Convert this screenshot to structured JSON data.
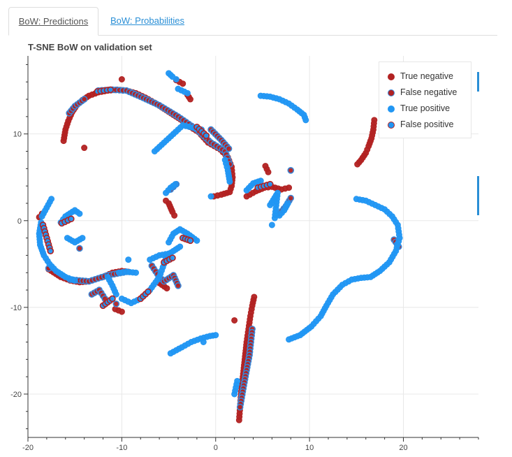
{
  "tabs": [
    {
      "label": "BoW: Predictions",
      "active": true
    },
    {
      "label": "BoW: Probabilities",
      "active": false
    }
  ],
  "chart_data": {
    "type": "scatter",
    "title": "T-SNE BoW on validation set",
    "xlabel": "",
    "ylabel": "",
    "xlim": [
      -20,
      28
    ],
    "ylim": [
      -25,
      19
    ],
    "xticks": [
      -20,
      -10,
      0,
      10,
      20
    ],
    "yticks": [
      -20,
      -10,
      0,
      10
    ],
    "grid": true,
    "legend_position": "top-right",
    "series": [
      {
        "name": "True negative",
        "color": "#b22222",
        "edge": "#b22222",
        "segments": [
          [
            [
              -16.2,
              9.2
            ],
            [
              -16.0,
              10.5
            ],
            [
              -15.7,
              11.5
            ],
            [
              -15.3,
              12.5
            ],
            [
              -14.8,
              13.3
            ],
            [
              -14.2,
              13.9
            ],
            [
              -13.5,
              14.4
            ],
            [
              -12.5,
              14.8
            ],
            [
              -11.5,
              15.0
            ],
            [
              -10.5,
              15.1
            ],
            [
              -9.5,
              15.0
            ],
            [
              -8.5,
              14.7
            ],
            [
              -7.5,
              14.2
            ],
            [
              -6.5,
              13.6
            ],
            [
              -5.5,
              12.9
            ],
            [
              -4.5,
              12.2
            ],
            [
              -3.5,
              11.5
            ]
          ],
          [
            [
              -3.0,
              11.0
            ],
            [
              -1.8,
              10.2
            ],
            [
              -0.8,
              9.0
            ],
            [
              0.5,
              8.2
            ],
            [
              1.3,
              7.3
            ],
            [
              1.7,
              6.2
            ],
            [
              1.8,
              5.0
            ],
            [
              1.7,
              4.0
            ],
            [
              1.5,
              3.3
            ],
            [
              0.6,
              3.0
            ],
            [
              -0.2,
              2.8
            ]
          ],
          [
            [
              15.1,
              6.5
            ],
            [
              15.5,
              7.0
            ],
            [
              16.0,
              7.8
            ],
            [
              16.3,
              8.6
            ],
            [
              16.6,
              9.5
            ],
            [
              16.8,
              10.5
            ],
            [
              16.9,
              11.6
            ]
          ],
          [
            [
              2.5,
              -23.0
            ],
            [
              2.6,
              -21.5
            ],
            [
              2.7,
              -20.0
            ],
            [
              2.9,
              -18.0
            ],
            [
              3.1,
              -16.0
            ],
            [
              3.3,
              -14.0
            ],
            [
              3.5,
              -12.5
            ],
            [
              3.7,
              -11.0
            ],
            [
              3.9,
              -9.8
            ],
            [
              4.1,
              -8.8
            ]
          ],
          [
            [
              -5.3,
              2.3
            ],
            [
              -5.0,
              2.0
            ],
            [
              -4.8,
              1.5
            ],
            [
              -4.6,
              1.0
            ],
            [
              -4.4,
              0.6
            ]
          ],
          [
            [
              -18.5,
              0.8
            ],
            [
              -18.8,
              0.4
            ]
          ],
          [
            [
              -17.8,
              -5.6
            ],
            [
              -16.5,
              -6.5
            ],
            [
              -15.5,
              -6.9
            ],
            [
              -14.5,
              -7.1
            ],
            [
              -13.5,
              -7.0
            ]
          ],
          [
            [
              -12.0,
              -6.5
            ],
            [
              -11.0,
              -6.0
            ],
            [
              -10.0,
              -5.8
            ],
            [
              -9.3,
              -5.9
            ]
          ],
          [
            [
              3.3,
              2.8
            ],
            [
              4.3,
              3.4
            ],
            [
              5.2,
              3.8
            ],
            [
              6.0,
              3.9
            ],
            [
              7.0,
              3.6
            ],
            [
              7.8,
              3.8
            ]
          ],
          [
            [
              5.3,
              6.3
            ],
            [
              5.6,
              5.6
            ]
          ],
          [
            [
              -6.0,
              -7.2
            ],
            [
              -5.2,
              -7.8
            ]
          ],
          [
            [
              -10.7,
              -10.2
            ],
            [
              -10.0,
              -10.5
            ]
          ],
          [
            [
              -14.0,
              8.4
            ]
          ],
          [
            [
              -10.0,
              16.3
            ]
          ],
          [
            [
              -4.2,
              16.2
            ],
            [
              -3.5,
              15.8
            ]
          ],
          [
            [
              -3.0,
              14.5
            ],
            [
              -2.7,
              14.0
            ]
          ],
          [
            [
              2.0,
              -11.5
            ]
          ]
        ]
      },
      {
        "name": "False negative",
        "color": "#b22222",
        "edge": "#3a86d6",
        "segments": [
          [
            [
              -12.5,
              15.0
            ],
            [
              -11.0,
              15.1
            ],
            [
              -9.5,
              15.0
            ],
            [
              -8.0,
              14.3
            ],
            [
              -6.0,
              13.3
            ],
            [
              -4.0,
              12.0
            ],
            [
              -2.0,
              10.5
            ],
            [
              -0.5,
              9.0
            ],
            [
              1.0,
              8.0
            ],
            [
              1.5,
              6.5
            ]
          ],
          [
            [
              -15.6,
              12.4
            ],
            [
              -15.0,
              13.2
            ],
            [
              -14.0,
              14.0
            ]
          ],
          [
            [
              -15.5,
              -6.8
            ],
            [
              -13.5,
              -7.0
            ],
            [
              -11.5,
              -6.3
            ],
            [
              -9.5,
              -5.9
            ]
          ],
          [
            [
              -13.2,
              -8.5
            ],
            [
              -12.4,
              -8.0
            ],
            [
              -11.8,
              -9.0
            ]
          ],
          [
            [
              -6.8,
              -5.2
            ],
            [
              -6.0,
              -6.5
            ],
            [
              -5.5,
              -7.0
            ],
            [
              -4.5,
              -6.3
            ],
            [
              -4.0,
              -7.5
            ]
          ],
          [
            [
              -4.8,
              3.6
            ],
            [
              -4.2,
              4.2
            ]
          ],
          [
            [
              6.8,
              0.8
            ],
            [
              7.5,
              1.7
            ],
            [
              8.0,
              2.6
            ]
          ],
          [
            [
              3.9,
              -12.5
            ],
            [
              3.6,
              -15.5
            ],
            [
              3.0,
              -19.0
            ],
            [
              2.6,
              -21.5
            ]
          ],
          [
            [
              19.0,
              -2.2
            ],
            [
              19.5,
              -3.0
            ]
          ],
          [
            [
              -0.5,
              10.5
            ],
            [
              0.6,
              9.3
            ],
            [
              1.4,
              8.3
            ]
          ],
          [
            [
              8.0,
              5.8
            ]
          ],
          [
            [
              -17.8,
              -5.5
            ]
          ],
          [
            [
              -14.5,
              -3.2
            ]
          ],
          [
            [
              -10.6,
              -9.6
            ]
          ]
        ]
      },
      {
        "name": "True positive",
        "color": "#2196f3",
        "edge": "#2196f3",
        "segments": [
          [
            [
              -18.6,
              -0.2
            ],
            [
              -18.8,
              -1.5
            ],
            [
              -18.7,
              -2.8
            ],
            [
              -18.3,
              -4.0
            ],
            [
              -17.7,
              -5.0
            ],
            [
              -17.0,
              -5.8
            ],
            [
              -16.0,
              -6.5
            ],
            [
              -15.0,
              -6.9
            ]
          ],
          [
            [
              -18.5,
              0.5
            ],
            [
              -18.0,
              1.5
            ],
            [
              -17.5,
              2.5
            ]
          ],
          [
            [
              -16.5,
              -0.2
            ],
            [
              -16.0,
              0.5
            ],
            [
              -15.0,
              1.2
            ],
            [
              -14.5,
              0.8
            ]
          ],
          [
            [
              -15.8,
              -2.0
            ],
            [
              -15.0,
              -2.5
            ],
            [
              -14.2,
              -2.0
            ]
          ],
          [
            [
              -11.5,
              -6.5
            ],
            [
              -11.0,
              -7.5
            ],
            [
              -10.6,
              -8.5
            ]
          ],
          [
            [
              -10.3,
              -6.0
            ],
            [
              -9.5,
              -5.9
            ],
            [
              -8.5,
              -6.0
            ]
          ],
          [
            [
              -10.0,
              -9.0
            ],
            [
              -9.0,
              -9.5
            ],
            [
              -8.0,
              -9.0
            ],
            [
              -7.0,
              -8.0
            ],
            [
              -6.0,
              -6.5
            ],
            [
              -5.5,
              -5.0
            ],
            [
              -5.2,
              -4.0
            ],
            [
              -4.5,
              -3.5
            ],
            [
              -3.8,
              -3.0
            ]
          ],
          [
            [
              -7.0,
              -4.5
            ],
            [
              -6.0,
              -4.0
            ],
            [
              -5.0,
              -3.8
            ]
          ],
          [
            [
              -5.0,
              -2.5
            ],
            [
              -4.5,
              -1.5
            ],
            [
              -3.8,
              -1.0
            ],
            [
              -3.0,
              -1.5
            ],
            [
              -2.0,
              -2.3
            ]
          ],
          [
            [
              -5.3,
              3.2
            ],
            [
              -4.8,
              3.8
            ],
            [
              -4.3,
              4.2
            ]
          ],
          [
            [
              -5.0,
              17.0
            ],
            [
              -4.6,
              16.6
            ],
            [
              -4.2,
              16.3
            ]
          ],
          [
            [
              -4.0,
              15.2
            ],
            [
              -3.0,
              14.7
            ]
          ],
          [
            [
              4.8,
              14.4
            ],
            [
              5.8,
              14.3
            ],
            [
              6.8,
              14.0
            ],
            [
              7.8,
              13.5
            ],
            [
              8.7,
              12.8
            ],
            [
              9.4,
              12.2
            ],
            [
              9.6,
              11.6
            ]
          ],
          [
            [
              -6.5,
              8.0
            ],
            [
              -3.5,
              11.0
            ],
            [
              -1.5,
              10.5
            ]
          ],
          [
            [
              1.0,
              7.0
            ],
            [
              1.3,
              5.8
            ],
            [
              1.5,
              4.5
            ]
          ],
          [
            [
              -0.5,
              2.8
            ]
          ],
          [
            [
              3.3,
              3.5
            ],
            [
              4.0,
              4.3
            ],
            [
              4.8,
              4.6
            ]
          ],
          [
            [
              5.8,
              1.8
            ],
            [
              6.6,
              3.2
            ],
            [
              6.3,
              0.3
            ]
          ],
          [
            [
              6.8,
              0.6
            ],
            [
              7.3,
              1.2
            ],
            [
              7.7,
              2.0
            ]
          ],
          [
            [
              6.0,
              -0.5
            ]
          ],
          [
            [
              -4.8,
              -15.3
            ],
            [
              -3.6,
              -14.6
            ],
            [
              -2.6,
              -14.0
            ],
            [
              -1.6,
              -13.6
            ],
            [
              -0.6,
              -13.3
            ],
            [
              0.0,
              -13.2
            ]
          ],
          [
            [
              7.8,
              -13.7
            ],
            [
              9.0,
              -13.2
            ],
            [
              10.2,
              -12.2
            ],
            [
              11.2,
              -11.0
            ],
            [
              11.8,
              -9.8
            ],
            [
              12.5,
              -8.5
            ],
            [
              13.5,
              -7.4
            ],
            [
              14.5,
              -6.8
            ],
            [
              15.5,
              -6.6
            ],
            [
              16.5,
              -6.5
            ],
            [
              17.5,
              -5.8
            ],
            [
              18.5,
              -4.8
            ],
            [
              19.2,
              -3.5
            ],
            [
              19.6,
              -2.0
            ],
            [
              19.4,
              -0.5
            ],
            [
              18.8,
              0.5
            ],
            [
              18.0,
              1.3
            ],
            [
              17.0,
              1.8
            ],
            [
              16.0,
              2.3
            ],
            [
              15.0,
              2.5
            ]
          ],
          [
            [
              2.0,
              -20.0
            ],
            [
              2.3,
              -18.5
            ]
          ],
          [
            [
              -1.3,
              -14.0
            ]
          ],
          [
            [
              -9.3,
              -4.5
            ]
          ]
        ]
      },
      {
        "name": "False positive",
        "color": "#2196f3",
        "edge": "#b22222",
        "segments": [
          [
            [
              -18.4,
              -0.5
            ],
            [
              -18.0,
              -2.0
            ],
            [
              -17.6,
              -3.5
            ]
          ],
          [
            [
              -12.0,
              -9.8
            ],
            [
              -11.0,
              -9.0
            ]
          ],
          [
            [
              -8.0,
              -9.0
            ],
            [
              -7.2,
              -8.2
            ]
          ],
          [
            [
              -5.5,
              -4.8
            ],
            [
              -4.6,
              -4.3
            ]
          ],
          [
            [
              -3.5,
              -2.0
            ],
            [
              -2.7,
              -2.3
            ]
          ],
          [
            [
              4.5,
              3.8
            ],
            [
              5.8,
              4.2
            ]
          ],
          [
            [
              -2.0,
              10.8
            ],
            [
              -1.0,
              9.8
            ]
          ],
          [
            [
              -12.6,
              14.9
            ],
            [
              -11.2,
              15.1
            ]
          ],
          [
            [
              -16.4,
              -0.3
            ],
            [
              -15.4,
              0.2
            ]
          ]
        ]
      }
    ]
  }
}
